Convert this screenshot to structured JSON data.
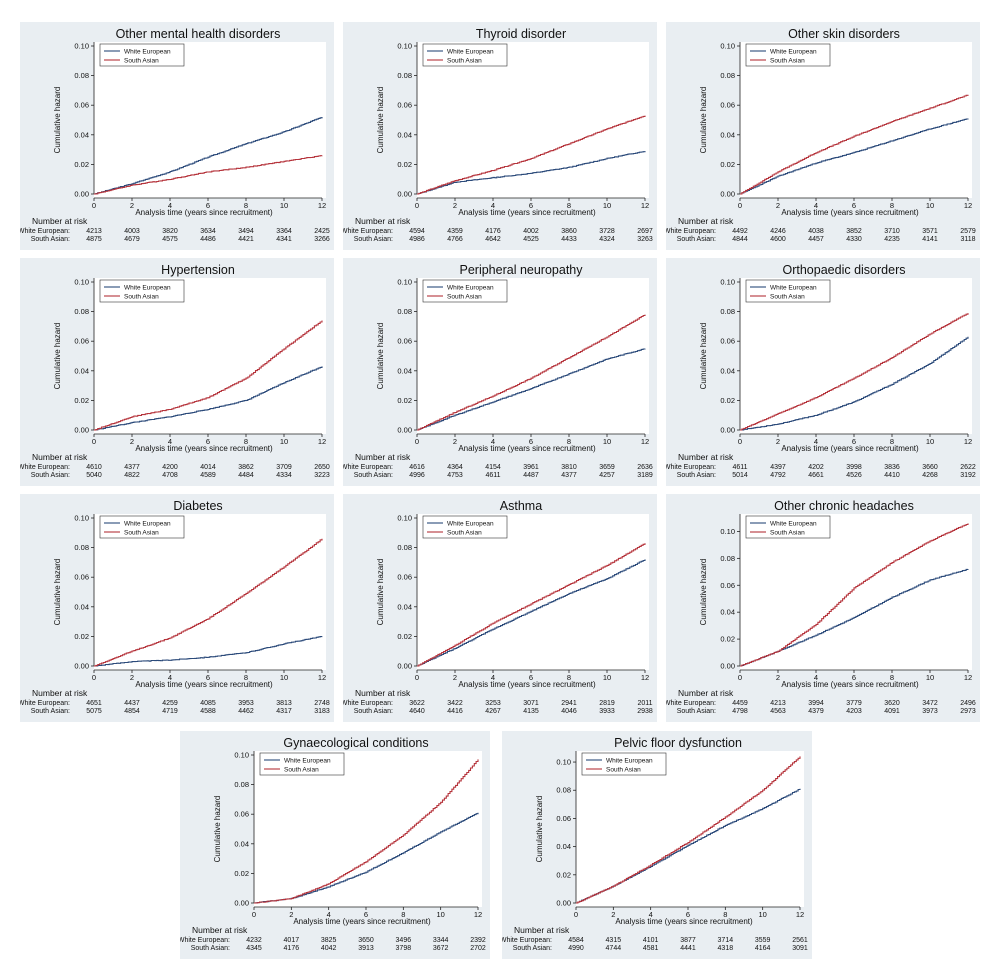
{
  "colors": {
    "white_european": "#2b4a7a",
    "south_asian": "#b5333b"
  },
  "risk_header": "Number at risk",
  "chart_data": [
    {
      "type": "line",
      "title": "Other mental health disorders",
      "xlabel": "Analysis time (years since recruitment)",
      "ylabel": "Cumulative hazard",
      "xlim": [
        0,
        12
      ],
      "ylim": [
        0,
        0.1
      ],
      "xticks": [
        0,
        2,
        4,
        6,
        8,
        10,
        12
      ],
      "yticks": [
        "0.00",
        "0.02",
        "0.04",
        "0.06",
        "0.08",
        "0.10"
      ],
      "legend_position": "top-left",
      "x": [
        0,
        2,
        4,
        6,
        8,
        10,
        12
      ],
      "series": [
        {
          "name": "White European",
          "values": [
            0,
            0.007,
            0.015,
            0.025,
            0.034,
            0.042,
            0.052
          ],
          "at_risk": [
            "4213",
            "4003",
            "3820",
            "3634",
            "3494",
            "3364",
            "2425"
          ]
        },
        {
          "name": "South Asian",
          "values": [
            0,
            0.006,
            0.01,
            0.015,
            0.018,
            0.022,
            0.026
          ],
          "at_risk": [
            "4875",
            "4679",
            "4575",
            "4486",
            "4421",
            "4341",
            "3266"
          ]
        }
      ]
    },
    {
      "type": "line",
      "title": "Thyroid disorder",
      "xlabel": "Analysis time (years since recruitment)",
      "ylabel": "Cumulative hazard",
      "xlim": [
        0,
        12
      ],
      "ylim": [
        0,
        0.1
      ],
      "xticks": [
        0,
        2,
        4,
        6,
        8,
        10,
        12
      ],
      "yticks": [
        "0.00",
        "0.02",
        "0.04",
        "0.06",
        "0.08",
        "0.10"
      ],
      "legend_position": "top-left",
      "x": [
        0,
        2,
        4,
        6,
        8,
        10,
        12
      ],
      "series": [
        {
          "name": "White European",
          "values": [
            0,
            0.008,
            0.011,
            0.014,
            0.018,
            0.024,
            0.029
          ],
          "at_risk": [
            "4594",
            "4359",
            "4176",
            "4002",
            "3860",
            "3728",
            "2697"
          ]
        },
        {
          "name": "South Asian",
          "values": [
            0,
            0.009,
            0.016,
            0.024,
            0.034,
            0.044,
            0.053
          ],
          "at_risk": [
            "4986",
            "4766",
            "4642",
            "4525",
            "4433",
            "4324",
            "3263"
          ]
        }
      ]
    },
    {
      "type": "line",
      "title": "Other skin disorders",
      "xlabel": "Analysis time (years since recruitment)",
      "ylabel": "Cumulative hazard",
      "xlim": [
        0,
        12
      ],
      "ylim": [
        0,
        0.1
      ],
      "xticks": [
        0,
        2,
        4,
        6,
        8,
        10,
        12
      ],
      "yticks": [
        "0.00",
        "0.02",
        "0.04",
        "0.06",
        "0.08",
        "0.10"
      ],
      "legend_position": "top-left",
      "x": [
        0,
        2,
        4,
        6,
        8,
        10,
        12
      ],
      "series": [
        {
          "name": "White European",
          "values": [
            0,
            0.012,
            0.021,
            0.028,
            0.036,
            0.044,
            0.051
          ],
          "at_risk": [
            "4492",
            "4246",
            "4038",
            "3852",
            "3710",
            "3571",
            "2579"
          ]
        },
        {
          "name": "South Asian",
          "values": [
            0,
            0.015,
            0.028,
            0.039,
            0.049,
            0.058,
            0.067
          ],
          "at_risk": [
            "4844",
            "4600",
            "4457",
            "4330",
            "4235",
            "4141",
            "3118"
          ]
        }
      ]
    },
    {
      "type": "line",
      "title": "Hypertension",
      "xlabel": "Analysis time (years since recruitment)",
      "ylabel": "Cumulative hazard",
      "xlim": [
        0,
        12
      ],
      "ylim": [
        0,
        0.1
      ],
      "xticks": [
        0,
        2,
        4,
        6,
        8,
        10,
        12
      ],
      "yticks": [
        "0.00",
        "0.02",
        "0.04",
        "0.06",
        "0.08",
        "0.10"
      ],
      "legend_position": "top-left",
      "x": [
        0,
        2,
        4,
        6,
        8,
        10,
        12
      ],
      "series": [
        {
          "name": "White European",
          "values": [
            0,
            0.005,
            0.009,
            0.014,
            0.02,
            0.032,
            0.043
          ],
          "at_risk": [
            "4610",
            "4377",
            "4200",
            "4014",
            "3862",
            "3709",
            "2650"
          ]
        },
        {
          "name": "South Asian",
          "values": [
            0,
            0.009,
            0.014,
            0.022,
            0.035,
            0.055,
            0.074
          ],
          "at_risk": [
            "5040",
            "4822",
            "4708",
            "4589",
            "4484",
            "4334",
            "3223"
          ]
        }
      ]
    },
    {
      "type": "line",
      "title": "Peripheral neuropathy",
      "xlabel": "Analysis time (years since recruitment)",
      "ylabel": "Cumulative hazard",
      "xlim": [
        0,
        12
      ],
      "ylim": [
        0,
        0.1
      ],
      "xticks": [
        0,
        2,
        4,
        6,
        8,
        10,
        12
      ],
      "yticks": [
        "0.00",
        "0.02",
        "0.04",
        "0.06",
        "0.08",
        "0.10"
      ],
      "legend_position": "top-left",
      "x": [
        0,
        2,
        4,
        6,
        8,
        10,
        12
      ],
      "series": [
        {
          "name": "White European",
          "values": [
            0,
            0.01,
            0.019,
            0.028,
            0.038,
            0.048,
            0.055
          ],
          "at_risk": [
            "4616",
            "4364",
            "4154",
            "3961",
            "3810",
            "3659",
            "2636"
          ]
        },
        {
          "name": "South Asian",
          "values": [
            0,
            0.012,
            0.023,
            0.035,
            0.049,
            0.063,
            0.078
          ],
          "at_risk": [
            "4996",
            "4753",
            "4611",
            "4487",
            "4377",
            "4257",
            "3189"
          ]
        }
      ]
    },
    {
      "type": "line",
      "title": "Orthopaedic disorders",
      "xlabel": "Analysis time (years since recruitment)",
      "ylabel": "Cumulative hazard",
      "xlim": [
        0,
        12
      ],
      "ylim": [
        0,
        0.1
      ],
      "xticks": [
        0,
        2,
        4,
        6,
        8,
        10,
        12
      ],
      "yticks": [
        "0.00",
        "0.02",
        "0.04",
        "0.06",
        "0.08",
        "0.10"
      ],
      "legend_position": "top-left",
      "x": [
        0,
        2,
        4,
        6,
        8,
        10,
        12
      ],
      "series": [
        {
          "name": "White European",
          "values": [
            0,
            0.004,
            0.01,
            0.019,
            0.031,
            0.045,
            0.063
          ],
          "at_risk": [
            "4611",
            "4397",
            "4202",
            "3998",
            "3836",
            "3660",
            "2622"
          ]
        },
        {
          "name": "South Asian",
          "values": [
            0,
            0.011,
            0.022,
            0.035,
            0.049,
            0.065,
            0.079
          ],
          "at_risk": [
            "5014",
            "4792",
            "4661",
            "4526",
            "4410",
            "4268",
            "3192"
          ]
        }
      ]
    },
    {
      "type": "line",
      "title": "Diabetes",
      "xlabel": "Analysis time (years since recruitment)",
      "ylabel": "Cumulative hazard",
      "xlim": [
        0,
        12
      ],
      "ylim": [
        0,
        0.1
      ],
      "xticks": [
        0,
        2,
        4,
        6,
        8,
        10,
        12
      ],
      "yticks": [
        "0.00",
        "0.02",
        "0.04",
        "0.06",
        "0.08",
        "0.10"
      ],
      "legend_position": "top-left",
      "x": [
        0,
        2,
        4,
        6,
        8,
        10,
        12
      ],
      "series": [
        {
          "name": "White European",
          "values": [
            0,
            0.003,
            0.004,
            0.006,
            0.009,
            0.015,
            0.02
          ],
          "at_risk": [
            "4651",
            "4437",
            "4259",
            "4085",
            "3953",
            "3813",
            "2748"
          ]
        },
        {
          "name": "South Asian",
          "values": [
            0,
            0.01,
            0.019,
            0.032,
            0.049,
            0.067,
            0.086
          ],
          "at_risk": [
            "5075",
            "4854",
            "4719",
            "4588",
            "4462",
            "4317",
            "3183"
          ]
        }
      ]
    },
    {
      "type": "line",
      "title": "Asthma",
      "xlabel": "Analysis time (years since recruitment)",
      "ylabel": "Cumulative hazard",
      "xlim": [
        0,
        12
      ],
      "ylim": [
        0,
        0.1
      ],
      "xticks": [
        0,
        2,
        4,
        6,
        8,
        10,
        12
      ],
      "yticks": [
        "0.00",
        "0.02",
        "0.04",
        "0.06",
        "0.08",
        "0.10"
      ],
      "legend_position": "top-left",
      "x": [
        0,
        2,
        4,
        6,
        8,
        10,
        12
      ],
      "series": [
        {
          "name": "White European",
          "values": [
            0,
            0.012,
            0.025,
            0.037,
            0.049,
            0.059,
            0.072
          ],
          "at_risk": [
            "3622",
            "3422",
            "3253",
            "3071",
            "2941",
            "2819",
            "2011"
          ]
        },
        {
          "name": "South Asian",
          "values": [
            0,
            0.014,
            0.029,
            0.042,
            0.055,
            0.068,
            0.083
          ],
          "at_risk": [
            "4640",
            "4416",
            "4267",
            "4135",
            "4046",
            "3933",
            "2938"
          ]
        }
      ]
    },
    {
      "type": "line",
      "title": "Other chronic headaches",
      "xlabel": "Analysis time (years since recruitment)",
      "ylabel": "Cumulative hazard",
      "xlim": [
        0,
        12
      ],
      "ylim": [
        0,
        0.11
      ],
      "xticks": [
        0,
        2,
        4,
        6,
        8,
        10,
        12
      ],
      "yticks": [
        "0.00",
        "0.02",
        "0.04",
        "0.06",
        "0.08",
        "0.10"
      ],
      "legend_position": "top-left",
      "x": [
        0,
        2,
        4,
        6,
        8,
        10,
        12
      ],
      "series": [
        {
          "name": "White European",
          "values": [
            0,
            0.011,
            0.023,
            0.036,
            0.051,
            0.064,
            0.072
          ],
          "at_risk": [
            "4459",
            "4213",
            "3994",
            "3779",
            "3620",
            "3472",
            "2496"
          ]
        },
        {
          "name": "South Asian",
          "values": [
            0,
            0.011,
            0.031,
            0.058,
            0.077,
            0.093,
            0.106
          ],
          "at_risk": [
            "4798",
            "4563",
            "4379",
            "4203",
            "4091",
            "3973",
            "2973"
          ]
        }
      ]
    },
    {
      "type": "line",
      "title": "Gynaecological conditions",
      "xlabel": "Analysis time (years since recruitment)",
      "ylabel": "Cumulative hazard",
      "xlim": [
        0,
        12
      ],
      "ylim": [
        0,
        0.1
      ],
      "xticks": [
        0,
        2,
        4,
        6,
        8,
        10,
        12
      ],
      "yticks": [
        "0.00",
        "0.02",
        "0.04",
        "0.06",
        "0.08",
        "0.10"
      ],
      "legend_position": "top-left",
      "x": [
        0,
        2,
        4,
        6,
        8,
        10,
        12
      ],
      "series": [
        {
          "name": "White European",
          "values": [
            0,
            0.003,
            0.011,
            0.021,
            0.034,
            0.048,
            0.061
          ],
          "at_risk": [
            "4232",
            "4017",
            "3825",
            "3650",
            "3496",
            "3344",
            "2392"
          ]
        },
        {
          "name": "South Asian",
          "values": [
            0,
            0.003,
            0.013,
            0.028,
            0.046,
            0.068,
            0.097
          ],
          "at_risk": [
            "4345",
            "4176",
            "4042",
            "3913",
            "3798",
            "3672",
            "2702"
          ]
        }
      ]
    },
    {
      "type": "line",
      "title": "Pelvic floor dysfunction",
      "xlabel": "Analysis time (years since recruitment)",
      "ylabel": "Cumulative hazard",
      "xlim": [
        0,
        12
      ],
      "ylim": [
        0,
        0.105
      ],
      "xticks": [
        0,
        2,
        4,
        6,
        8,
        10,
        12
      ],
      "yticks": [
        "0.00",
        "0.02",
        "0.04",
        "0.06",
        "0.08",
        "0.10"
      ],
      "legend_position": "top-left",
      "x": [
        0,
        2,
        4,
        6,
        8,
        10,
        12
      ],
      "series": [
        {
          "name": "White European",
          "values": [
            0,
            0.012,
            0.026,
            0.041,
            0.055,
            0.067,
            0.081
          ],
          "at_risk": [
            "4584",
            "4315",
            "4101",
            "3877",
            "3714",
            "3559",
            "2561"
          ]
        },
        {
          "name": "South Asian",
          "values": [
            0,
            0.012,
            0.027,
            0.043,
            0.061,
            0.08,
            0.104
          ],
          "at_risk": [
            "4990",
            "4744",
            "4581",
            "4441",
            "4318",
            "4164",
            "3091"
          ]
        }
      ]
    }
  ]
}
